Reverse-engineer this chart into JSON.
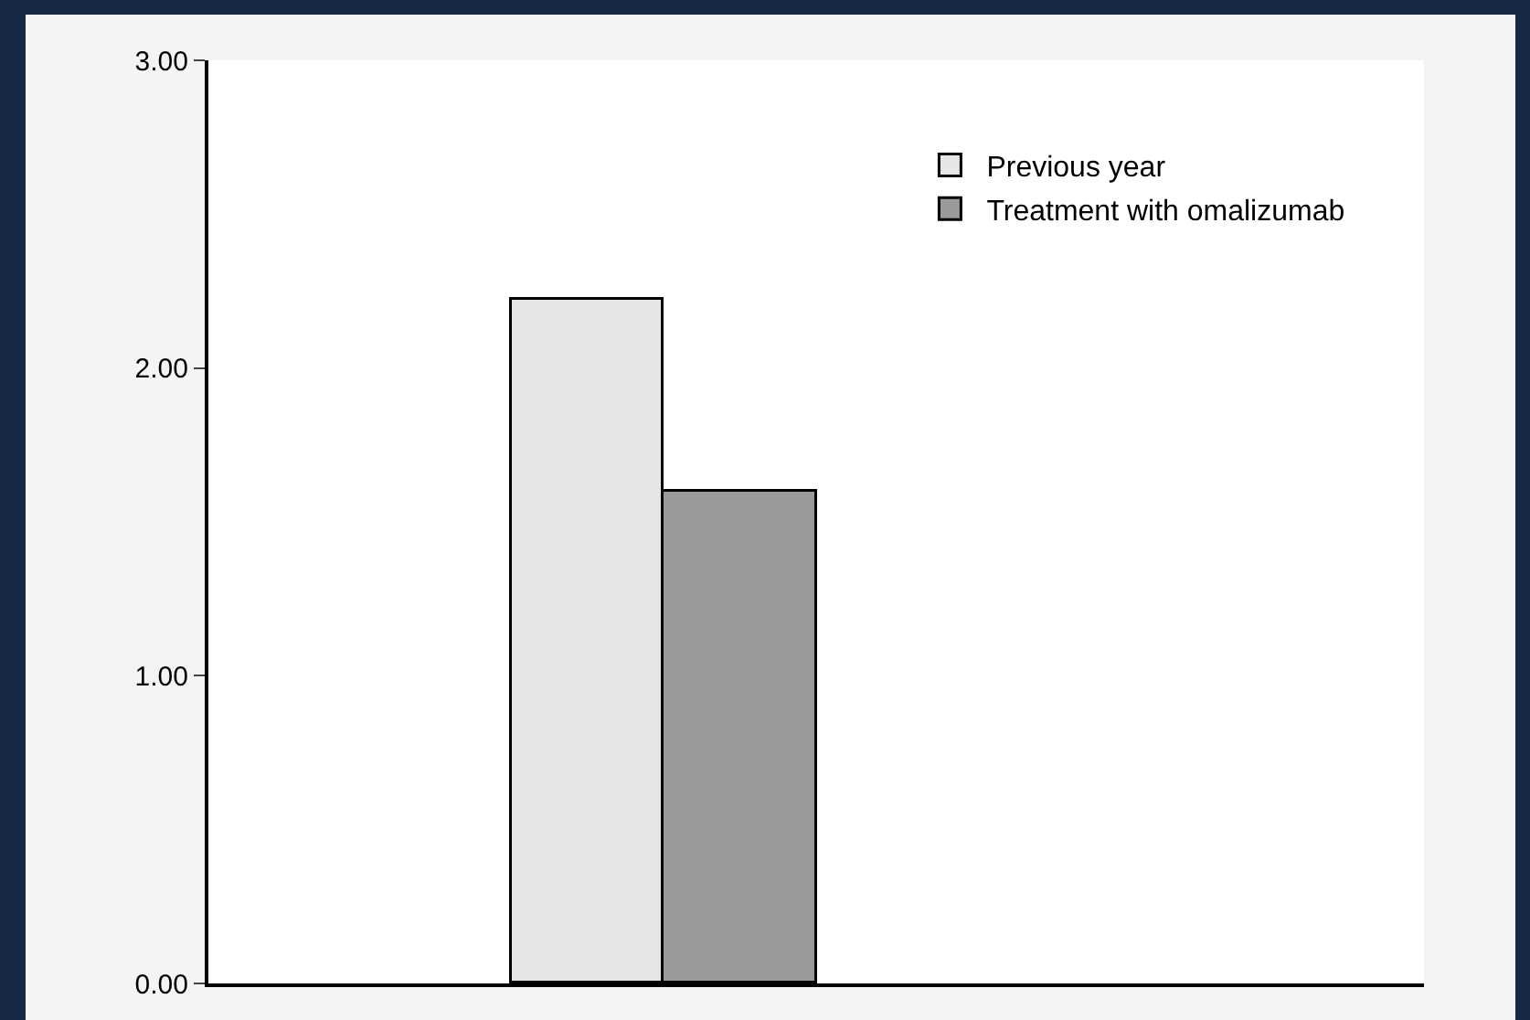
{
  "chart_data": {
    "type": "bar",
    "categories": [
      null,
      null,
      null,
      null
    ],
    "series": [
      {
        "name": "Previous year",
        "color": "#e6e6e6",
        "values": [
          null,
          2.22,
          null,
          null
        ]
      },
      {
        "name": "Treatment with omalizumab",
        "color": "#9a9a9a",
        "values": [
          null,
          1.6,
          null,
          null
        ]
      }
    ],
    "ylim": [
      0,
      3
    ],
    "yticks": [
      {
        "value": 0,
        "label": "0.00"
      },
      {
        "value": 1,
        "label": "1.00"
      },
      {
        "value": 2,
        "label": "2.00"
      },
      {
        "value": 3,
        "label": "3.00"
      }
    ],
    "grid": false,
    "legend": "top right"
  }
}
